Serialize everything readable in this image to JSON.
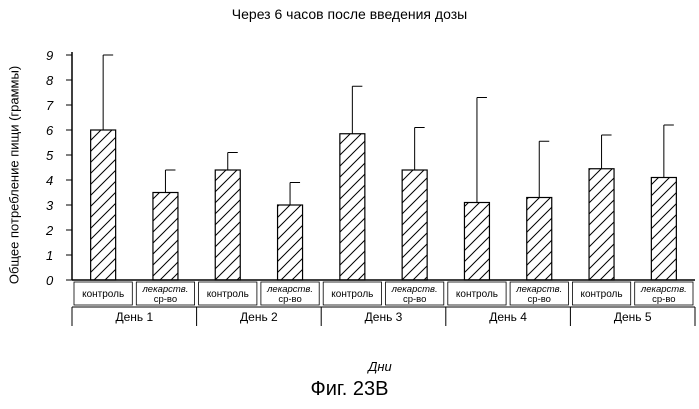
{
  "chart_data": {
    "type": "bar",
    "title": "Через 6 часов после введения дозы",
    "ylabel": "Общее потребление пищи (граммы)",
    "xlabel": "Дни",
    "ylim": [
      0,
      9
    ],
    "yticks": [
      "0",
      "1",
      "2",
      "3",
      "4",
      "5",
      "6",
      "7",
      "8",
      "9"
    ],
    "bar_pattern": "diagonal-hatch",
    "error_bars": "upper-only",
    "groups": [
      {
        "label": "День 1",
        "bars": [
          {
            "label": "контроль",
            "value": 6.0,
            "err_top": 9.0
          },
          {
            "label": "лекарств. ср-во",
            "value": 3.5,
            "err_top": 4.4
          }
        ]
      },
      {
        "label": "День 2",
        "bars": [
          {
            "label": "контроль",
            "value": 4.4,
            "err_top": 5.1
          },
          {
            "label": "лекарств. ср-во",
            "value": 3.0,
            "err_top": 3.9
          }
        ]
      },
      {
        "label": "День 3",
        "bars": [
          {
            "label": "контроль",
            "value": 5.85,
            "err_top": 7.75
          },
          {
            "label": "лекарств. ср-во",
            "value": 4.4,
            "err_top": 6.1
          }
        ]
      },
      {
        "label": "День 4",
        "bars": [
          {
            "label": "контроль",
            "value": 3.1,
            "err_top": 7.3
          },
          {
            "label": "лекарств. ср-во",
            "value": 3.3,
            "err_top": 5.55
          }
        ]
      },
      {
        "label": "День 5",
        "bars": [
          {
            "label": "контроль",
            "value": 4.45,
            "err_top": 5.8
          },
          {
            "label": "лекарств. ср-во",
            "value": 4.1,
            "err_top": 6.2
          }
        ]
      }
    ]
  },
  "figure_label": "Фиг. 23В"
}
